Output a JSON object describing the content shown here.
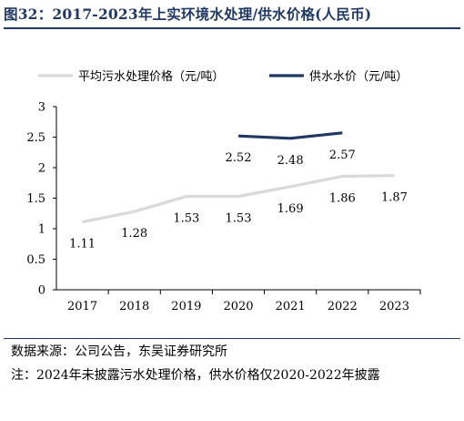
{
  "figure": {
    "title": "图32：2017-2023年上实环境水处理/供水价格(人民币)"
  },
  "chart_data": {
    "type": "line",
    "categories": [
      "2017",
      "2018",
      "2019",
      "2020",
      "2021",
      "2022",
      "2023"
    ],
    "ylim": [
      0,
      3
    ],
    "yticks": [
      "0",
      "0.5",
      "1",
      "1.5",
      "2",
      "2.5",
      "3"
    ],
    "legend_position": "top",
    "series": [
      {
        "name": "平均污水处理价格（元/吨）",
        "color": "#d9d9d9",
        "values": [
          1.11,
          1.28,
          1.53,
          1.53,
          1.69,
          1.86,
          1.87
        ],
        "labels": [
          "1.11",
          "1.28",
          "1.53",
          "1.53",
          "1.69",
          "1.86",
          "1.87"
        ]
      },
      {
        "name": "供水水价（元/吨）",
        "color": "#1f3864",
        "values": [
          null,
          null,
          null,
          2.52,
          2.48,
          2.57,
          null
        ],
        "labels": [
          null,
          null,
          null,
          "2.52",
          "2.48",
          "2.57",
          null
        ]
      }
    ]
  },
  "footer": {
    "source": "数据来源：公司公告，东吴证券研究所",
    "note": "注：2024年未披露污水处理价格，供水价格仅2020-2022年披露"
  }
}
